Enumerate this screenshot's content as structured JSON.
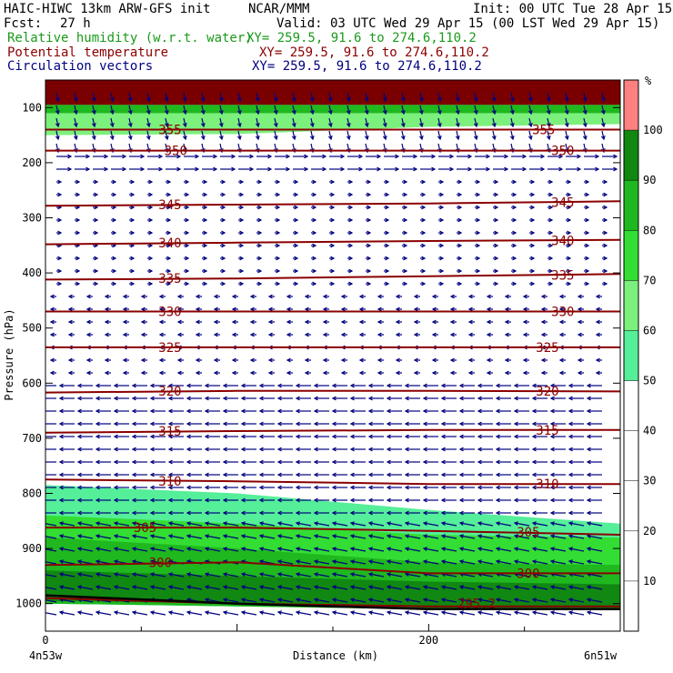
{
  "header": {
    "title": "HAIC-HIWC 13km ARW-GFS init",
    "org": "NCAR/MMM",
    "init": "Init: 00 UTC Tue 28 Apr 15",
    "fcst_label": "Fcst:",
    "fcst_value": "27 h",
    "valid": "Valid: 03 UTC Wed 29 Apr 15 (00 LST Wed 29 Apr 15)",
    "rh_label": "Relative humidity (w.r.t. water)",
    "theta_label": "Potential temperature",
    "vec_label": "Circulation vectors",
    "xy": "XY= 259.5, 91.6 to 274.6,110.2",
    "percent_unit": "%"
  },
  "colors": {
    "rh": "#1a9a1a",
    "theta": "#8b0000",
    "vec": "#000080",
    "terrain": "#000000"
  },
  "chart_data": {
    "type": "contour-cross-section",
    "xlabel": "Distance (km)",
    "ylabel": "Pressure (hPa)",
    "x_ticks": [
      0,
      200
    ],
    "x_range": [
      0,
      300
    ],
    "y_ticks": [
      100,
      200,
      300,
      400,
      500,
      600,
      700,
      800,
      900,
      1000
    ],
    "y_range": [
      1050,
      50
    ],
    "x_start_label": "4n53w",
    "x_end_label": "6n51w",
    "colorbar": {
      "ticks": [
        10,
        20,
        30,
        40,
        50,
        60,
        70,
        80,
        90,
        100
      ],
      "range": [
        0,
        110
      ],
      "bands": [
        {
          "from": 0,
          "to": 50,
          "color": "#ffffff"
        },
        {
          "from": 50,
          "to": 60,
          "color": "#55ee99"
        },
        {
          "from": 60,
          "to": 70,
          "color": "#7cf07c"
        },
        {
          "from": 70,
          "to": 80,
          "color": "#33dd33"
        },
        {
          "from": 80,
          "to": 90,
          "color": "#1fb81f"
        },
        {
          "from": 90,
          "to": 100,
          "color": "#118811"
        },
        {
          "from": 100,
          "to": 110,
          "color": "#ff8080"
        }
      ]
    },
    "theta_contours": [
      {
        "label": "355",
        "p": [
          140,
          140,
          140,
          140
        ],
        "label_positions": [
          [
            65,
            140
          ],
          [
            260,
            140
          ]
        ]
      },
      {
        "label": "350",
        "p": [
          178,
          178,
          178,
          178
        ],
        "label_positions": [
          [
            68,
            178
          ],
          [
            270,
            178
          ]
        ]
      },
      {
        "label": "345",
        "p": [
          278,
          276,
          274,
          270
        ],
        "label_positions": [
          [
            65,
            276
          ],
          [
            270,
            272
          ]
        ]
      },
      {
        "label": "340",
        "p": [
          348,
          345,
          342,
          340
        ],
        "label_positions": [
          [
            65,
            345
          ],
          [
            270,
            341
          ]
        ]
      },
      {
        "label": "335",
        "p": [
          412,
          410,
          406,
          402
        ],
        "label_positions": [
          [
            65,
            410
          ],
          [
            270,
            404
          ]
        ]
      },
      {
        "label": "330",
        "p": [
          470,
          470,
          470,
          470
        ],
        "label_positions": [
          [
            65,
            470
          ],
          [
            270,
            470
          ]
        ]
      },
      {
        "label": "325",
        "p": [
          535,
          535,
          535,
          535
        ],
        "label_positions": [
          [
            65,
            535
          ],
          [
            262,
            535
          ]
        ]
      },
      {
        "label": "320",
        "p": [
          617,
          614,
          614,
          615
        ],
        "label_positions": [
          [
            65,
            614
          ],
          [
            262,
            614
          ]
        ]
      },
      {
        "label": "315",
        "p": [
          690,
          687,
          685,
          685
        ],
        "label_positions": [
          [
            65,
            687
          ],
          [
            262,
            685
          ]
        ]
      },
      {
        "label": "310",
        "p": [
          775,
          778,
          783,
          783
        ],
        "label_positions": [
          [
            65,
            778
          ],
          [
            262,
            783
          ]
        ]
      },
      {
        "label": "305",
        "p": [
          862,
          862,
          868,
          875
        ],
        "label_positions": [
          [
            52,
            862
          ],
          [
            252,
            870
          ]
        ]
      },
      {
        "label": "300",
        "p": [
          930,
          925,
          945,
          945
        ],
        "label_positions": [
          [
            60,
            925
          ],
          [
            252,
            945
          ]
        ]
      },
      {
        "label": "295.2",
        "p": [
          990,
          1000,
          1005,
          1005
        ],
        "label_positions": [
          [
            225,
            1000
          ]
        ]
      }
    ],
    "rh_regions": [
      {
        "level": 55,
        "top": [
          785,
          800,
          830,
          855
        ],
        "bottom": [
          1000,
          1005,
          1010,
          1010
        ]
      },
      {
        "level": 75,
        "top": [
          840,
          855,
          875,
          880
        ],
        "bottom": [
          1000,
          1005,
          1010,
          1010
        ]
      },
      {
        "level": 85,
        "top": [
          880,
          900,
          925,
          930
        ],
        "bottom": [
          1000,
          1005,
          1010,
          1010
        ]
      },
      {
        "level": 95,
        "top": [
          940,
          950,
          960,
          965
        ],
        "bottom": [
          995,
          1000,
          1008,
          1008
        ]
      },
      {
        "level": 60,
        "top": [
          95,
          95,
          95,
          95
        ],
        "bottom": [
          150,
          148,
          135,
          130
        ]
      },
      {
        "level": 85,
        "top": [
          95,
          95,
          95,
          95
        ],
        "bottom": [
          110,
          110,
          110,
          110
        ]
      }
    ],
    "top_band": {
      "p_top": 50,
      "p_bottom": 95,
      "color": "#7a0000"
    },
    "terrain_p": [
      985,
      1000,
      1010,
      1010
    ]
  }
}
